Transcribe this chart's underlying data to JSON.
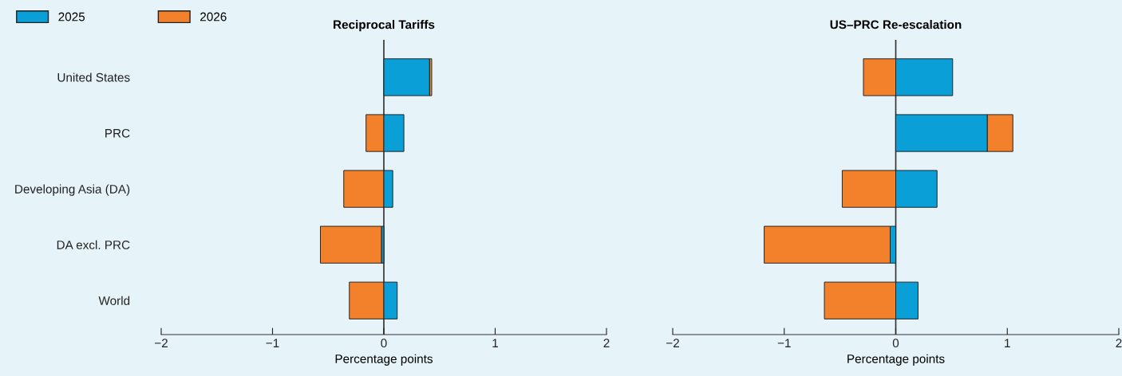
{
  "chart_data": [
    {
      "type": "bar",
      "orientation": "horizontal",
      "stacked": true,
      "title": "Reciprocal Tariffs",
      "xlabel": "Percentage points",
      "categories": [
        "United States",
        "PRC",
        "Developing Asia (DA)",
        "DA excl. PRC",
        "World"
      ],
      "series": [
        {
          "name": "2025",
          "color": "#0a9fd6",
          "values": [
            0.41,
            0.18,
            0.08,
            -0.02,
            0.12
          ]
        },
        {
          "name": "2026",
          "color": "#f3812c",
          "values": [
            0.02,
            -0.16,
            -0.36,
            -0.55,
            -0.31
          ]
        }
      ],
      "xlim": [
        -2,
        2
      ],
      "xticks": [
        -2,
        -1,
        0,
        1,
        2
      ],
      "ref_lines": [
        {
          "axis": "x",
          "value": 0,
          "color": "#333333"
        }
      ],
      "legend": "top left",
      "grid": false
    },
    {
      "type": "bar",
      "orientation": "horizontal",
      "stacked": true,
      "title": "US–PRC Re-escalation",
      "xlabel": "Percentage points",
      "categories": [
        null,
        null,
        null,
        null,
        null
      ],
      "series": [
        {
          "color": "#0a9fd6",
          "values": [
            0.51,
            0.82,
            0.37,
            -0.05,
            0.2
          ]
        },
        {
          "color": "#f3812c",
          "values": [
            -0.29,
            0.23,
            -0.48,
            -1.13,
            -0.64
          ]
        }
      ],
      "xlim": [
        -2,
        2
      ],
      "xticks": [
        -2,
        -1,
        0,
        1,
        2
      ],
      "ref_lines": [
        {
          "axis": "x",
          "value": 0,
          "color": "#333333"
        }
      ],
      "tick_labels": "x",
      "grid": false
    }
  ]
}
